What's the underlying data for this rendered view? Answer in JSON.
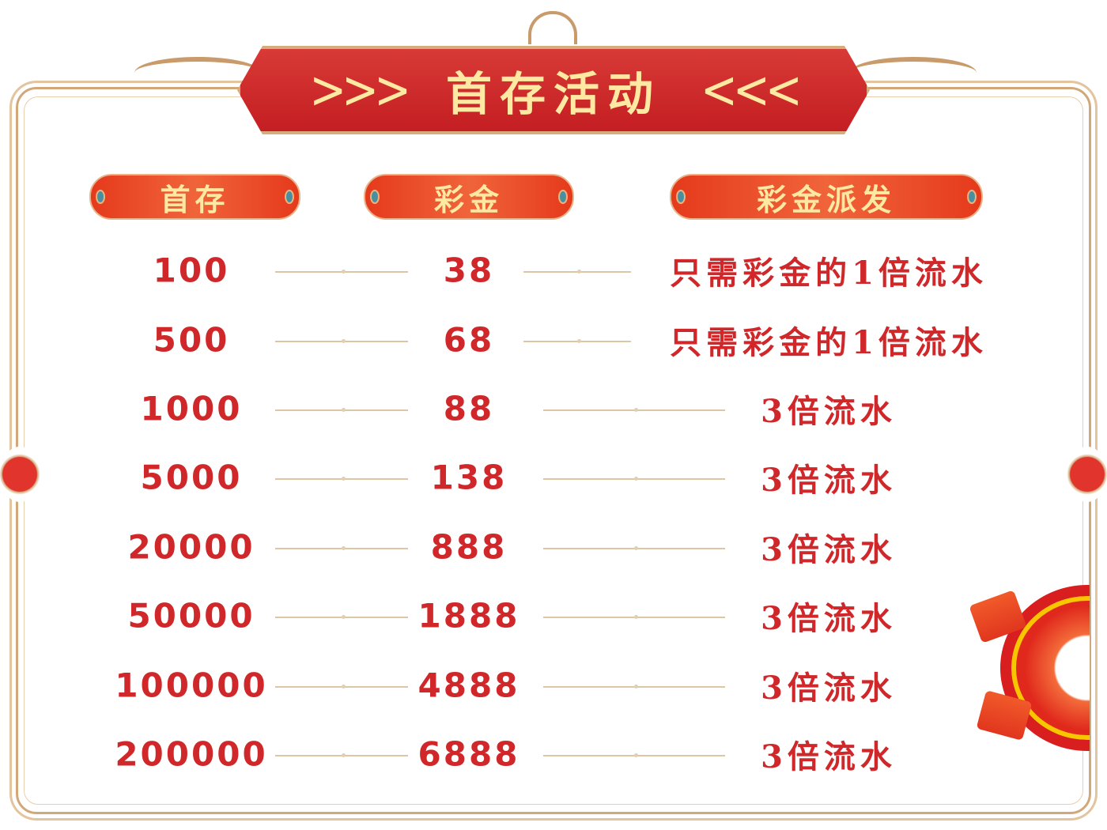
{
  "title": {
    "text": "首存活动",
    "left_chevrons": ">>>",
    "right_chevrons": "<<<"
  },
  "headers": [
    "首存",
    "彩金",
    "彩金派发"
  ],
  "rows": [
    {
      "deposit": "100",
      "bonus": "38",
      "payout": "只需彩金的1倍流水"
    },
    {
      "deposit": "500",
      "bonus": "68",
      "payout": "只需彩金的1倍流水"
    },
    {
      "deposit": "1000",
      "bonus": "88",
      "payout": "3倍流水"
    },
    {
      "deposit": "5000",
      "bonus": "138",
      "payout": "3倍流水"
    },
    {
      "deposit": "20000",
      "bonus": "888",
      "payout": "3倍流水"
    },
    {
      "deposit": "50000",
      "bonus": "1888",
      "payout": "3倍流水"
    },
    {
      "deposit": "100000",
      "bonus": "4888",
      "payout": "3倍流水"
    },
    {
      "deposit": "200000",
      "bonus": "6888",
      "payout": "3倍流水"
    }
  ],
  "colors": {
    "text_red": "#d0282a",
    "banner_red": "#c41e22",
    "gold_text": "#fde9a2",
    "frame_gold": "#d2a87a"
  }
}
